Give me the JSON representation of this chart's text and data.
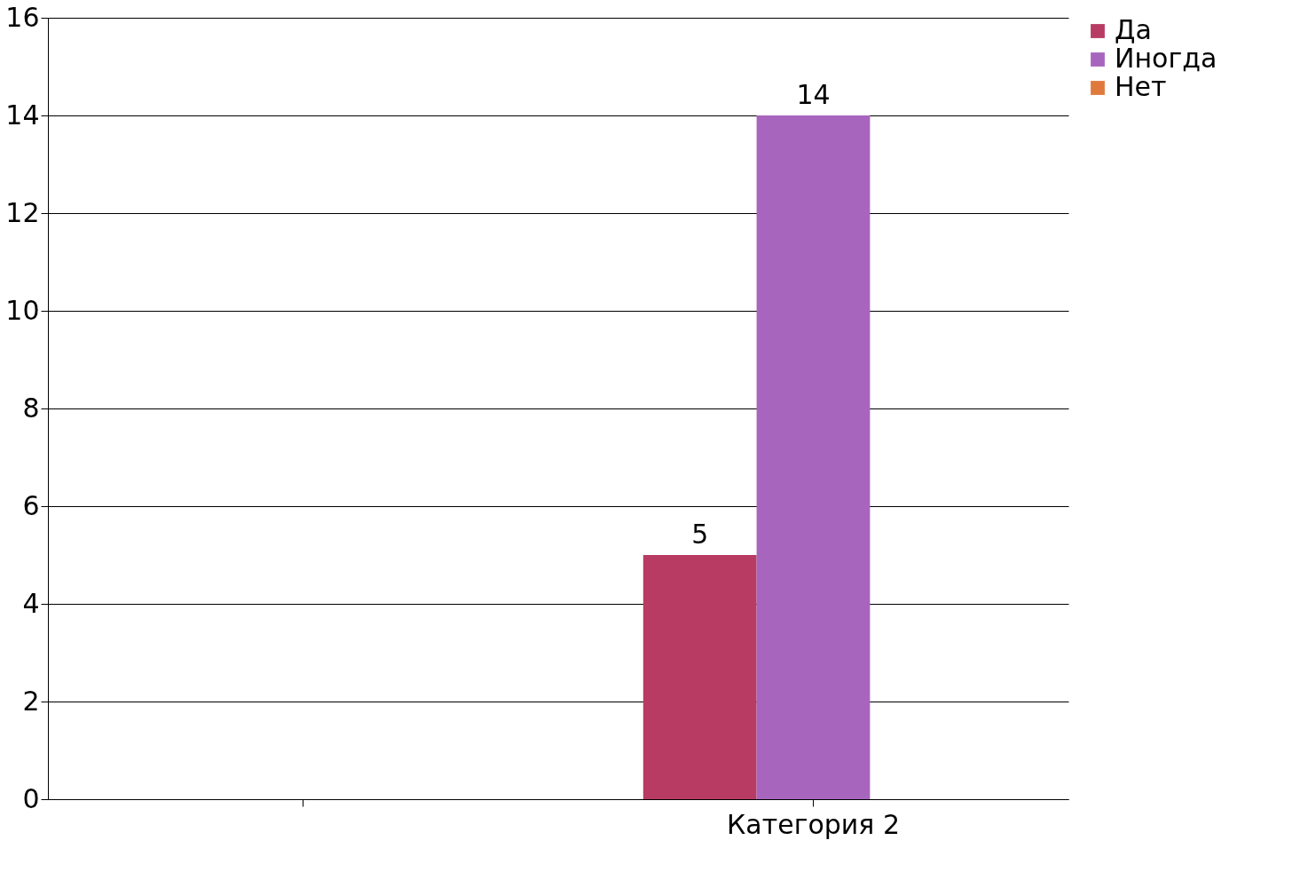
{
  "chart_data": {
    "type": "bar",
    "categories": [
      null,
      "Категория 2"
    ],
    "series": [
      {
        "name": "Да",
        "color": "#b83b64",
        "values": [
          null,
          5
        ]
      },
      {
        "name": "Иногда",
        "color": "#a865be",
        "values": [
          null,
          14
        ]
      },
      {
        "name": "Нет",
        "color": "#e07a3c",
        "values": [
          null,
          null
        ]
      }
    ],
    "ylim": [
      0,
      16
    ],
    "yticks": [
      0,
      2,
      4,
      6,
      8,
      10,
      12,
      14,
      16
    ],
    "grid": "y",
    "legend": "right",
    "data_labels": true
  }
}
